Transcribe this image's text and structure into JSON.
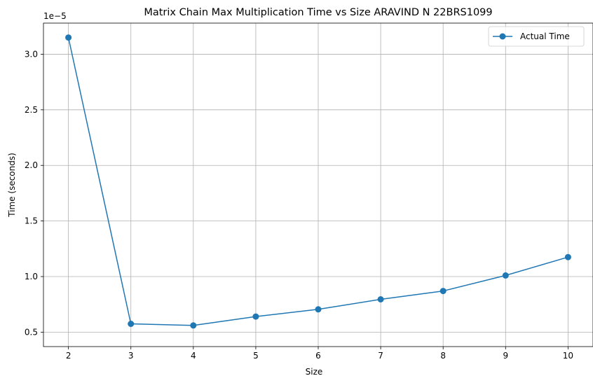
{
  "chart_data": {
    "type": "line",
    "title": "Matrix Chain Max Multiplication Time vs Size ARAVIND N 22BRS1099",
    "xlabel": "Size",
    "ylabel": "Time (seconds)",
    "y_offset_label": "1e−5",
    "x": [
      2,
      3,
      4,
      5,
      6,
      7,
      8,
      9,
      10
    ],
    "series": [
      {
        "name": "Actual Time",
        "values": [
          3.15e-05,
          5.75e-06,
          5.6e-06,
          6.4e-06,
          7.05e-06,
          7.95e-06,
          8.7e-06,
          1.01e-05,
          1.175e-05
        ],
        "color": "#1f77b4",
        "marker": "circle"
      }
    ],
    "xticks": [
      2,
      3,
      4,
      5,
      6,
      7,
      8,
      9,
      10
    ],
    "yticks": [
      0.5,
      1.0,
      1.5,
      2.0,
      2.5,
      3.0
    ],
    "ytick_labels": [
      "0.5",
      "1.0",
      "1.5",
      "2.0",
      "2.5",
      "3.0"
    ],
    "xlim": [
      1.6,
      10.4
    ],
    "ylim": [
      0.37,
      3.28
    ],
    "y_scale": 1e-05,
    "grid": true,
    "legend_position": "top-right"
  }
}
